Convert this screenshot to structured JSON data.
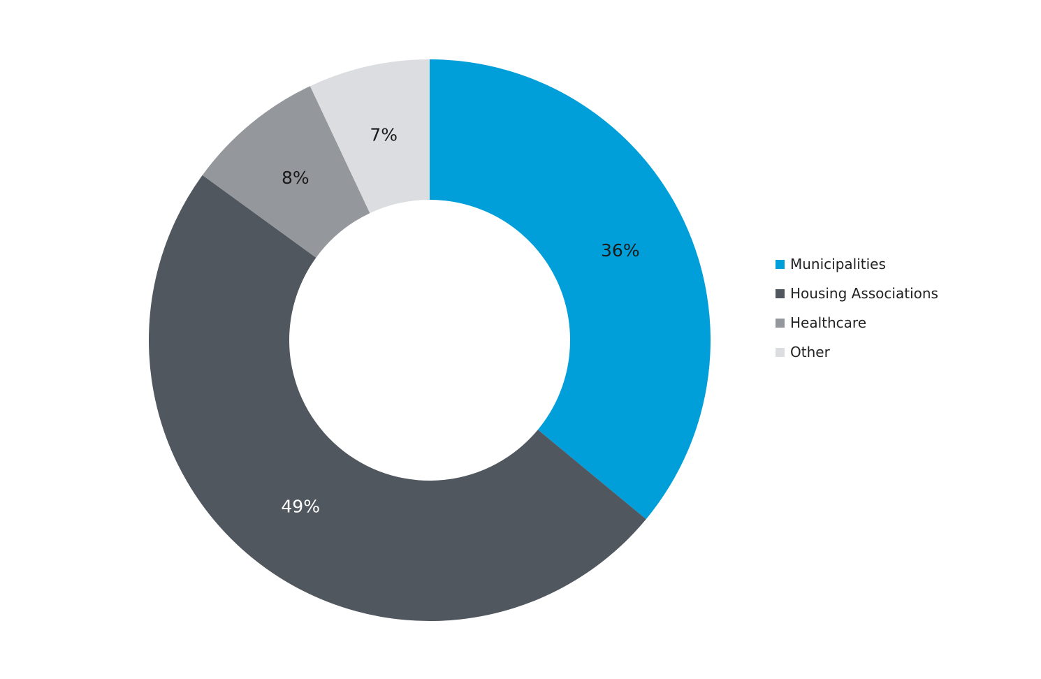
{
  "chart_data": {
    "type": "pie",
    "variant": "donut",
    "title": "",
    "categories": [
      "Municipalities",
      "Housing Associations",
      "Healthcare",
      "Other"
    ],
    "values": [
      36,
      49,
      8,
      7
    ],
    "labels": [
      "36%",
      "49%",
      "8%",
      "7%"
    ],
    "colors": [
      "#009fda",
      "#50575e",
      "#94989c",
      "#dcdde0"
    ],
    "label_colors": [
      "#1a1a1a",
      "#ffffff",
      "#1a1a1a",
      "#1a1a1a"
    ],
    "start_angle": "12 o'clock",
    "direction": "clockwise",
    "legend_position": "right"
  }
}
